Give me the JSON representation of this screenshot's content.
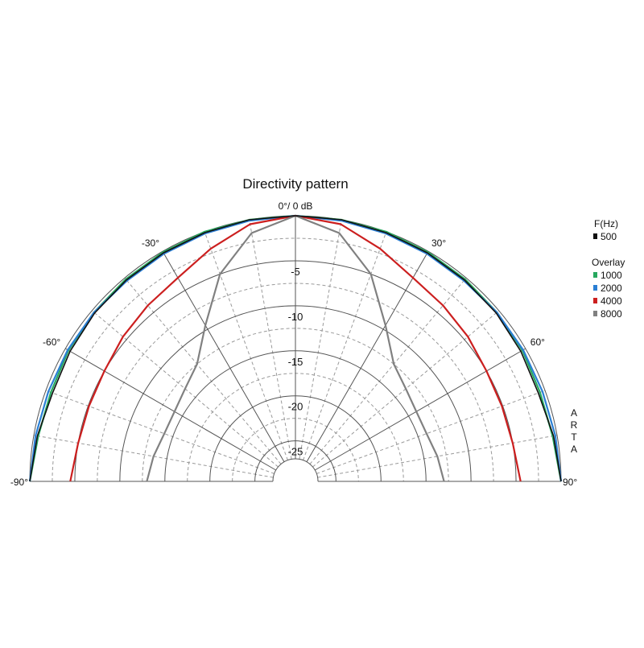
{
  "chart_data": {
    "type": "polar",
    "title": "Directivity pattern",
    "r_axis": {
      "unit": "dB",
      "ticks": [
        -5,
        -10,
        -15,
        -20,
        -25
      ],
      "tick_labels": [
        "-5",
        "-10",
        "-15",
        "-20",
        "-25"
      ],
      "range": [
        -27,
        0
      ]
    },
    "angle_axis": {
      "range_deg": [
        -90,
        90
      ],
      "labels": [
        {
          "angle": 0,
          "text": "0°/ 0 dB"
        },
        {
          "angle": -30,
          "text": "-30°"
        },
        {
          "angle": 30,
          "text": "30°"
        },
        {
          "angle": -60,
          "text": "-60°"
        },
        {
          "angle": 60,
          "text": "60°"
        },
        {
          "angle": -90,
          "text": "-90°"
        },
        {
          "angle": 90,
          "text": "90°"
        }
      ]
    },
    "grid": true,
    "legend": {
      "placement": "right",
      "header": "F(Hz)",
      "overlay_label": "Overlay"
    },
    "watermark": "ARTA",
    "series": [
      {
        "name": "500",
        "color": "#111111",
        "role": "main",
        "angles": [
          -90,
          -80,
          -70,
          -60,
          -50,
          -40,
          -30,
          -20,
          -10,
          0,
          10,
          20,
          30,
          40,
          50,
          60,
          70,
          80,
          90
        ],
        "values": [
          0,
          -0.4,
          -0.8,
          -0.6,
          -0.4,
          -0.3,
          -0.2,
          -0.1,
          0,
          0,
          0,
          -0.1,
          -0.2,
          -0.3,
          -0.4,
          -0.6,
          -0.8,
          -0.4,
          0
        ]
      },
      {
        "name": "1000",
        "color": "#27a85f",
        "role": "overlay",
        "angles": [
          -90,
          -80,
          -70,
          -60,
          -50,
          -40,
          -30,
          -20,
          -10,
          0,
          10,
          20,
          30,
          40,
          50,
          60,
          70,
          80,
          90
        ],
        "values": [
          0,
          -0.5,
          -0.6,
          -0.4,
          -0.3,
          -0.2,
          -0.1,
          0,
          0,
          0,
          0,
          0,
          -0.1,
          -0.2,
          -0.3,
          -0.4,
          -0.6,
          -0.5,
          0
        ]
      },
      {
        "name": "2000",
        "color": "#2a7fd4",
        "role": "overlay",
        "angles": [
          -90,
          -80,
          -70,
          -60,
          -50,
          -40,
          -30,
          -20,
          -10,
          0,
          10,
          20,
          30,
          40,
          50,
          60,
          70,
          80,
          90
        ],
        "values": [
          0,
          -0.2,
          -0.3,
          -0.3,
          -0.3,
          -0.4,
          -0.3,
          -0.2,
          -0.1,
          0,
          -0.1,
          -0.2,
          -0.3,
          -0.4,
          -0.3,
          -0.3,
          -0.3,
          -0.2,
          0
        ]
      },
      {
        "name": "4000",
        "color": "#cc1f1f",
        "role": "overlay",
        "angles": [
          -90,
          -80,
          -70,
          -60,
          -50,
          -40,
          -30,
          -20,
          -10,
          0,
          10,
          20,
          30,
          40,
          50,
          60,
          70,
          80,
          90
        ],
        "values": [
          -4.5,
          -5,
          -5.1,
          -5,
          -4.5,
          -4,
          -3.4,
          -2,
          -0.5,
          0,
          -0.5,
          -2,
          -3.4,
          -4,
          -4.5,
          -5,
          -5.1,
          -5,
          -4.5
        ]
      },
      {
        "name": "8000",
        "color": "#808080",
        "role": "overlay",
        "angles": [
          -90,
          -80,
          -70,
          -60,
          -50,
          -40,
          -30,
          -20,
          -10,
          0,
          10,
          20,
          30,
          40,
          50,
          60,
          70,
          80,
          90
        ],
        "values": [
          -13,
          -13.5,
          -14,
          -14,
          -13.5,
          -12.5,
          -9.5,
          -5,
          -1.5,
          0,
          -1.5,
          -5,
          -9.5,
          -12.5,
          -13.5,
          -14,
          -14,
          -13.5,
          -13
        ]
      }
    ]
  }
}
